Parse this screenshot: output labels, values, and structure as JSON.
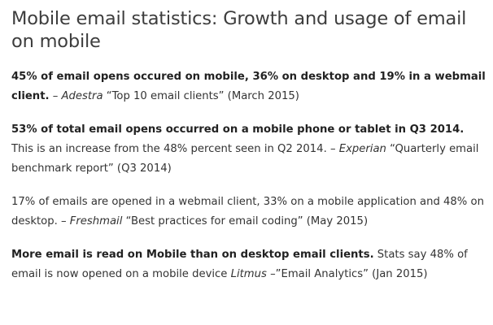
{
  "title": "Mobile email statistics: Growth and usage of email on mobile",
  "stats": [
    {
      "bold": "45% of email opens occured on mobile, 36% on desktop and 19% in a webmail client.",
      "dash": " – ",
      "source": "Adestra",
      "report": " “Top 10 email clients” (March 2015)"
    },
    {
      "bold": "53% of total email opens occurred on a mobile phone or tablet in Q3 2014.",
      "text": " This is an increase from the 48% percent seen in Q2 2014. – ",
      "source": "Experian",
      "report": " “Quarterly email benchmark report” (Q3 2014)"
    },
    {
      "text": "17% of emails are opened in a webmail client, 33% on a mobile application and 48% on desktop. – ",
      "source": "Freshmail",
      "report": " “Best practices for email coding” (May 2015)"
    },
    {
      "bold": "More email is read on Mobile than on desktop email clients.",
      "text": " Stats say 48% of email is now opened on a mobile device ",
      "source": "Litmus",
      "report": " –”Email Analytics” (Jan 2015)"
    }
  ]
}
